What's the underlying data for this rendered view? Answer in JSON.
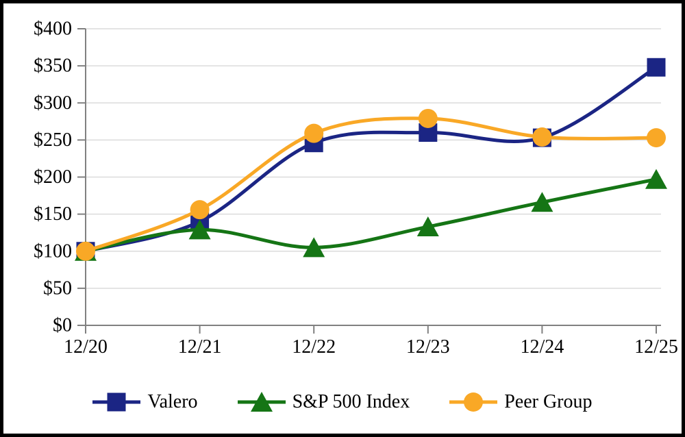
{
  "chart_data": {
    "type": "line",
    "title": "",
    "x_categories": [
      "12/20",
      "12/21",
      "12/22",
      "12/23",
      "12/24",
      "12/25"
    ],
    "y_tick_labels": [
      "$0",
      "$50",
      "$100",
      "$150",
      "$200",
      "$250",
      "$300",
      "$350",
      "$400"
    ],
    "y_tick_values": [
      0,
      50,
      100,
      150,
      200,
      250,
      300,
      350,
      400
    ],
    "ylim": [
      0,
      400
    ],
    "grid": true,
    "line_style": "smooth",
    "legend_position": "bottom",
    "axis_color": "#808080",
    "grid_color": "#DBDBDB",
    "text_color": "#000000",
    "frame_border_color": "#000000",
    "background_color": "#FFFFFF",
    "series": [
      {
        "name": "Valero",
        "marker": "square",
        "color": "#1B2584",
        "values": [
          100,
          140,
          246,
          260,
          253,
          348
        ]
      },
      {
        "name": "S&P 500 Index",
        "marker": "triangle",
        "color": "#157515",
        "values": [
          100,
          129,
          105,
          133,
          166,
          197
        ]
      },
      {
        "name": "Peer Group",
        "marker": "circle",
        "color": "#F9A826",
        "values": [
          100,
          156,
          259,
          279,
          254,
          253
        ]
      }
    ]
  }
}
